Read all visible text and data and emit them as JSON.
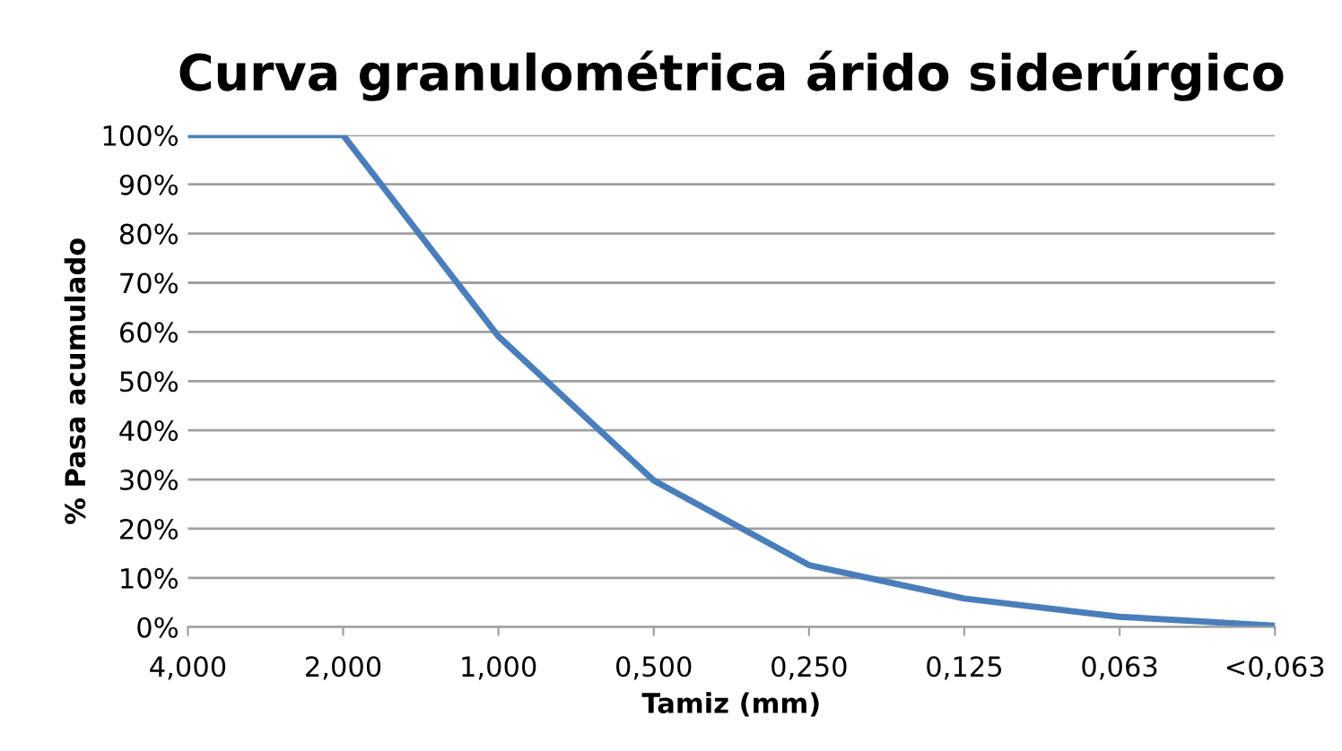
{
  "chart_data": {
    "type": "line",
    "title": "Curva granulométrica árido siderúrgico",
    "xlabel": "Tamiz (mm)",
    "ylabel": "% Pasa acumulado",
    "categories": [
      "4,000",
      "2,000",
      "1,000",
      "0,500",
      "0,250",
      "0,125",
      "0,063",
      "<0,063"
    ],
    "series": [
      {
        "color": "#4a7ebb",
        "values": [
          100,
          100,
          59.1,
          29.8,
          12.6,
          5.8,
          2.1,
          0.3
        ]
      }
    ],
    "ylim": [
      0,
      100
    ],
    "yticks": [
      {
        "value": 0,
        "label": "0%"
      },
      {
        "value": 10,
        "label": "10%"
      },
      {
        "value": 20,
        "label": "20%"
      },
      {
        "value": 30,
        "label": "30%"
      },
      {
        "value": 40,
        "label": "40%"
      },
      {
        "value": 50,
        "label": "50%"
      },
      {
        "value": 60,
        "label": "60%"
      },
      {
        "value": 70,
        "label": "70%"
      },
      {
        "value": 80,
        "label": "80%"
      },
      {
        "value": 90,
        "label": "90%"
      },
      {
        "value": 100,
        "label": "100%"
      }
    ],
    "grid": "y",
    "marker": "none",
    "line_style": "solid"
  }
}
